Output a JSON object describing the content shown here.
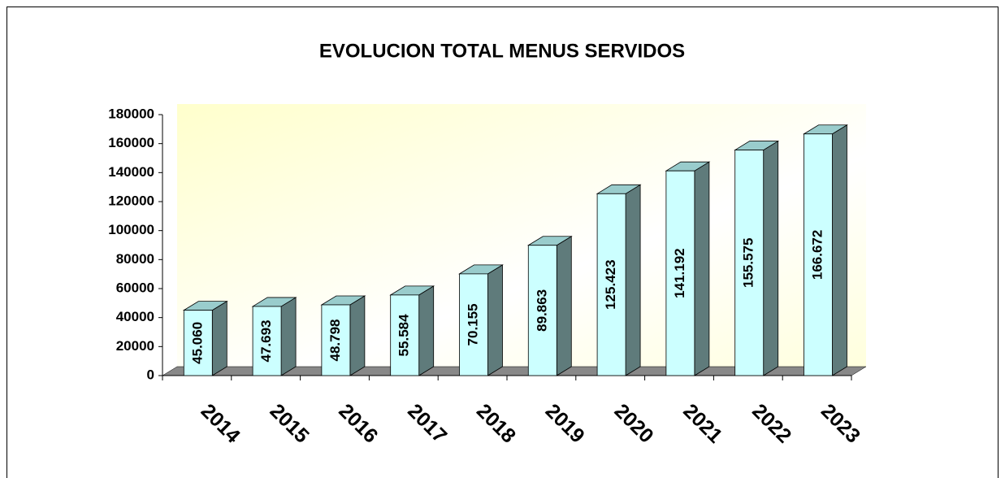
{
  "chart_data": {
    "type": "bar",
    "title": "EVOLUCION TOTAL MENUS SERVIDOS",
    "categories": [
      "2014",
      "2015",
      "2016",
      "2017",
      "2018",
      "2019",
      "2020",
      "2021",
      "2022",
      "2023"
    ],
    "values": [
      45060,
      47693,
      48798,
      55584,
      70155,
      89863,
      125423,
      141192,
      155575,
      166672
    ],
    "value_labels": [
      "45.060",
      "47.693",
      "48.798",
      "55.584",
      "70.155",
      "89.863",
      "125.423",
      "141.192",
      "155.575",
      "166.672"
    ],
    "color": "#ccffff",
    "ylim": [
      0,
      180000
    ],
    "yticks": [
      0,
      20000,
      40000,
      60000,
      80000,
      100000,
      120000,
      140000,
      160000,
      180000
    ]
  }
}
